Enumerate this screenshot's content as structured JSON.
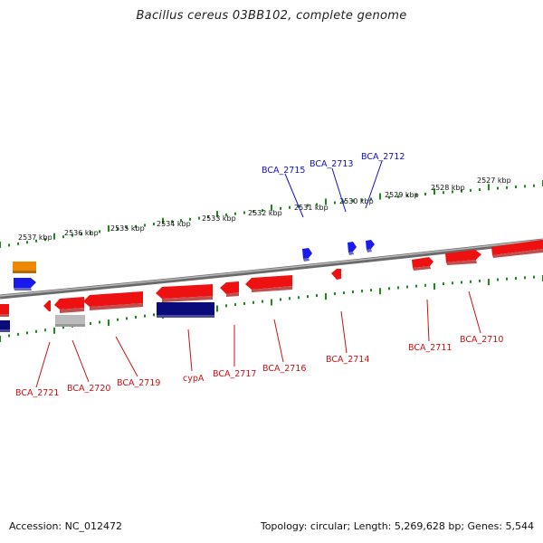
{
  "title": "Bacillus cereus 03BB102, complete genome",
  "footer": {
    "accession": "Accession: NC_012472",
    "summary": "Topology: circular; Length: 5,269,628 bp; Genes: 5,544"
  },
  "colors": {
    "backbone": "#808080",
    "tick": "#1a8a1a",
    "forward_label": "#1010c8",
    "reverse_label": "#d01010",
    "gene_red": "#ee1111",
    "gene_blue": "#1a1aee",
    "gene_navy": "#0a0a7a",
    "gene_orange": "#ee8800",
    "gene_gray": "#bbbbbb"
  },
  "ticks": [
    "2537 kbp",
    "2536 kbp",
    "2535 kbp",
    "2534 kbp",
    "2533 kbp",
    "2532 kbp",
    "2531 kbp",
    "2530 kbp",
    "2529 kbp",
    "2528 kbp",
    "2527 kbp"
  ],
  "genes": [
    {
      "label": "BCA_2721",
      "strand": "reverse",
      "color": "gene_red"
    },
    {
      "label": "BCA_2720",
      "strand": "reverse",
      "color": "gene_red"
    },
    {
      "label": "BCA_2719",
      "strand": "reverse",
      "color": "gene_red"
    },
    {
      "label": "cypA",
      "strand": "reverse",
      "color": "gene_red"
    },
    {
      "label": "BCA_2717",
      "strand": "reverse",
      "color": "gene_red"
    },
    {
      "label": "BCA_2716",
      "strand": "reverse",
      "color": "gene_red"
    },
    {
      "label": "BCA_2715",
      "strand": "forward",
      "color": "gene_blue"
    },
    {
      "label": "BCA_2714",
      "strand": "reverse",
      "color": "gene_red"
    },
    {
      "label": "BCA_2713",
      "strand": "forward",
      "color": "gene_blue"
    },
    {
      "label": "BCA_2712",
      "strand": "forward",
      "color": "gene_blue"
    },
    {
      "label": "BCA_2711",
      "strand": "reverse",
      "color": "gene_red"
    },
    {
      "label": "BCA_2710",
      "strand": "reverse",
      "color": "gene_red"
    }
  ],
  "unlabeled_features": [
    {
      "name": "forward-orange-feature",
      "color": "gene_orange"
    },
    {
      "name": "forward-blue-feature",
      "color": "gene_blue"
    },
    {
      "name": "reverse-gray-feature",
      "color": "gene_gray"
    },
    {
      "name": "reverse-navy-feature",
      "color": "gene_navy"
    },
    {
      "name": "reverse-navy-feature-left",
      "color": "gene_navy"
    },
    {
      "name": "reverse-red-feature-left",
      "color": "gene_red"
    }
  ]
}
